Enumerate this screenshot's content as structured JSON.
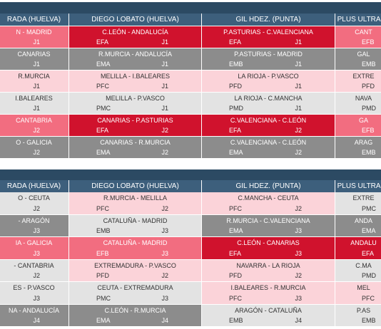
{
  "tables": [
    {
      "header": [
        "RADA (HUELVA)",
        "DIEGO LOBATO (HUELVA)",
        "GIL HDEZ. (PUNTA)",
        "PLUS ULTRA (C"
      ],
      "rows": [
        [
          {
            "match": "N - MADRID",
            "round": "J1"
          },
          {
            "match": "C.LEÓN - ANDALUCÍA",
            "code": "EFA",
            "round": "J1"
          },
          {
            "match": "P.ASTURIAS - C.VALENCIANA",
            "code": "EFA",
            "round": "J1"
          },
          {
            "match": "CANT",
            "code": "EFB"
          }
        ],
        [
          {
            "match": "CANARIAS",
            "round": "J1"
          },
          {
            "match": "R.MURCIA - ANDALUCÍA",
            "code": "EMA",
            "round": "J1"
          },
          {
            "match": "P.ASTURIAS - MADRID",
            "code": "EMB",
            "round": "J1"
          },
          {
            "match": "GAL",
            "code": "EMB"
          }
        ],
        [
          {
            "match": "R.MURCIA",
            "round": "J1"
          },
          {
            "match": "MELILLA - I.BALEARES",
            "code": "PFC",
            "round": "J1"
          },
          {
            "match": "LA RIOJA - P.VASCO",
            "code": "PFD",
            "round": "J1"
          },
          {
            "match": "EXTRE",
            "code": "PFD"
          }
        ],
        [
          {
            "match": "I.BALEARES",
            "round": "J1"
          },
          {
            "match": "MELILLA - P.VASCO",
            "code": "PMC",
            "round": "J1"
          },
          {
            "match": "LA RIOJA - C.MANCHA",
            "code": "PMD",
            "round": "J1"
          },
          {
            "match": "NAVA",
            "code": "PMD"
          }
        ],
        [
          {
            "match": "CANTABRIA",
            "round": "J2"
          },
          {
            "match": "CANARIAS - P.ASTURIAS",
            "code": "EFA",
            "round": "J2"
          },
          {
            "match": "C.VALENCIANA - C.LEÓN",
            "code": "EFA",
            "round": "J2"
          },
          {
            "match": "GA",
            "code": "EFB"
          }
        ],
        [
          {
            "match": "O - GALICIA",
            "round": "J2"
          },
          {
            "match": "CANARIAS - R.MURCIA",
            "code": "EMA",
            "round": "J2"
          },
          {
            "match": "C.VALENCIANA - C.LEÓN",
            "code": "EMA",
            "round": "J2"
          },
          {
            "match": "ARAG",
            "code": "EMB"
          }
        ]
      ]
    },
    {
      "header": [
        "RADA (HUELVA)",
        "DIEGO LOBATO (HUELVA)",
        "GIL HDEZ. (PUNTA)",
        "PLUS ULTRA (C"
      ],
      "rows": [
        [
          {
            "match": "O - CEUTA",
            "round": "J2"
          },
          {
            "match": "R.MURCIA - MELILLA",
            "code": "PFC",
            "round": "J2"
          },
          {
            "match": "C.MANCHA - CEUTA",
            "code": "PFC",
            "round": "J2"
          },
          {
            "match": "EXTRE",
            "code": "PMC"
          }
        ],
        [
          {
            "match": "- ARAGÓN",
            "round": "J3"
          },
          {
            "match": "CATALUÑA - MADRID",
            "code": "EMB",
            "round": "J3"
          },
          {
            "match": "R.MURCIA - C.VALENCIANA",
            "code": "EMA",
            "round": "J3"
          },
          {
            "match": "ANDA",
            "code": "EMA"
          }
        ],
        [
          {
            "match": "IA - GALICIA",
            "round": "J3"
          },
          {
            "match": "CATALUÑA - MADRID",
            "code": "EFB",
            "round": "J3"
          },
          {
            "match": "C.LEÓN - CANARIAS",
            "code": "EFA",
            "round": "J3"
          },
          {
            "match": "ANDALU",
            "code": "EFA"
          }
        ],
        [
          {
            "match": "- CANTABRIA",
            "round": "J2"
          },
          {
            "match": "EXTREMADURA - P.VASCO",
            "code": "PFD",
            "round": "J2"
          },
          {
            "match": "NAVARRA - LA RIOJA",
            "code": "PFD",
            "round": "J2"
          },
          {
            "match": "C.MA",
            "code": "PMD"
          }
        ],
        [
          {
            "match": "ES - P.VASCO",
            "round": "J3"
          },
          {
            "match": "CEUTA - EXTREMADURA",
            "code": "PMC",
            "round": "J3"
          },
          {
            "match": "I.BALEARES - R.MURCIA",
            "code": "PFC",
            "round": "J3"
          },
          {
            "match": "MEL",
            "code": "PFC"
          }
        ],
        [
          {
            "match": "NA - ANDALUCÍA",
            "round": "J4"
          },
          {
            "match": "C.LEÓN - R.MURCIA",
            "code": "EMA",
            "round": "J4"
          },
          {
            "match": "ARAGÓN - CATALUÑA",
            "code": "EMB",
            "round": "J4"
          },
          {
            "match": "P.AS",
            "code": "EMB"
          }
        ]
      ]
    }
  ]
}
